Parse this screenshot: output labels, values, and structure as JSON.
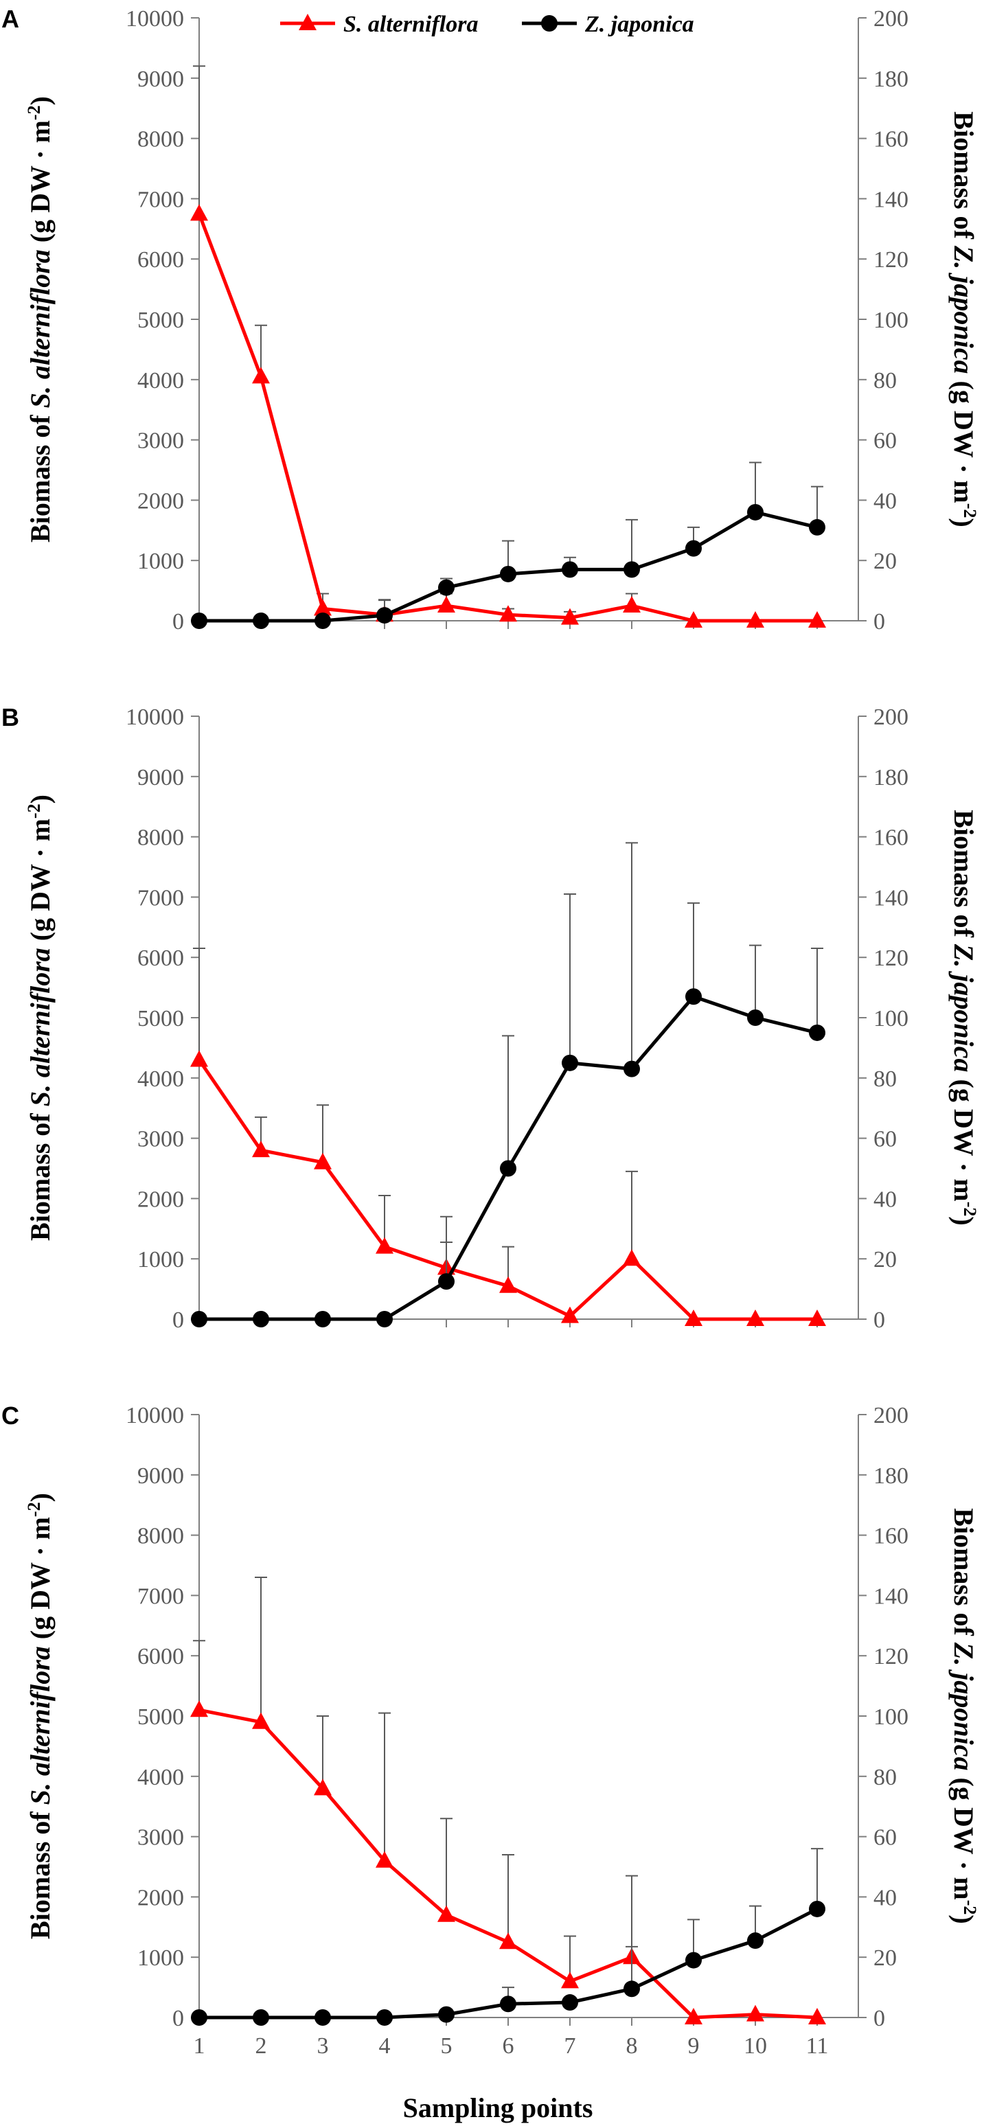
{
  "colors": {
    "s_alterniflora": "#ff0000",
    "z_japonica": "#000000",
    "axis": "#7f7f7f",
    "errorbar": "#595959"
  },
  "legend": [
    {
      "label": "S. alterniflora",
      "marker": "triangle",
      "color": "#ff0000"
    },
    {
      "label": "Z. japonica",
      "marker": "circle",
      "color": "#000000"
    }
  ],
  "left_axis_label": {
    "prefix": "Biomass of ",
    "italic": "S. alterniflora",
    "suffix": " (g DW · m",
    "sup": "-2",
    "close": ")"
  },
  "right_axis_label": {
    "prefix": "Biomass of ",
    "italic": "Z. japonica",
    "suffix": " (g DW · m",
    "sup": "-2",
    "close": ")"
  },
  "x_axis_label": "Sampling points",
  "chart_data": [
    {
      "type": "line",
      "panel": "A",
      "categories": [
        1,
        2,
        3,
        4,
        5,
        6,
        7,
        8,
        9,
        10,
        11
      ],
      "ylim_left": [
        0,
        10000
      ],
      "yticks_left": [
        0,
        1000,
        2000,
        3000,
        4000,
        5000,
        6000,
        7000,
        8000,
        9000,
        10000
      ],
      "ylim_right": [
        0,
        200
      ],
      "yticks_right": [
        0,
        20,
        40,
        60,
        80,
        100,
        120,
        140,
        160,
        180,
        200
      ],
      "series": [
        {
          "name": "S. alterniflora",
          "axis": "left",
          "values": [
            6750,
            4050,
            200,
            100,
            250,
            100,
            50,
            250,
            0,
            0,
            0
          ],
          "errors": [
            2450,
            850,
            250,
            250,
            200,
            100,
            100,
            200,
            0,
            0,
            0
          ]
        },
        {
          "name": "Z. japonica",
          "axis": "right",
          "values": [
            0,
            0,
            0,
            1.8,
            11,
            15.5,
            17,
            17,
            24,
            36,
            31
          ],
          "errors": [
            0,
            0,
            0,
            5,
            3,
            11,
            4,
            16.5,
            7,
            16.5,
            13.5
          ]
        }
      ]
    },
    {
      "type": "line",
      "panel": "B",
      "categories": [
        1,
        2,
        3,
        4,
        5,
        6,
        7,
        8,
        9,
        10,
        11
      ],
      "ylim_left": [
        0,
        10000
      ],
      "yticks_left": [
        0,
        1000,
        2000,
        3000,
        4000,
        5000,
        6000,
        7000,
        8000,
        9000,
        10000
      ],
      "ylim_right": [
        0,
        200
      ],
      "yticks_right": [
        0,
        20,
        40,
        60,
        80,
        100,
        120,
        140,
        160,
        180,
        200
      ],
      "series": [
        {
          "name": "S. alterniflora",
          "axis": "left",
          "values": [
            4300,
            2800,
            2600,
            1200,
            850,
            550,
            50,
            1000,
            0,
            0,
            0
          ],
          "errors": [
            1850,
            550,
            950,
            850,
            850,
            650,
            0,
            1450,
            0,
            0,
            0
          ]
        },
        {
          "name": "Z. japonica",
          "axis": "right",
          "values": [
            0,
            0,
            0,
            0,
            12.5,
            50,
            85,
            83,
            107,
            100,
            95
          ],
          "errors": [
            0,
            0,
            0,
            0,
            13,
            44,
            56,
            75,
            31,
            24,
            28
          ]
        }
      ]
    },
    {
      "type": "line",
      "panel": "C",
      "categories": [
        1,
        2,
        3,
        4,
        5,
        6,
        7,
        8,
        9,
        10,
        11
      ],
      "ylim_left": [
        0,
        10000
      ],
      "yticks_left": [
        0,
        1000,
        2000,
        3000,
        4000,
        5000,
        6000,
        7000,
        8000,
        9000,
        10000
      ],
      "ylim_right": [
        0,
        200
      ],
      "yticks_right": [
        0,
        20,
        40,
        60,
        80,
        100,
        120,
        140,
        160,
        180,
        200
      ],
      "series": [
        {
          "name": "S. alterniflora",
          "axis": "left",
          "values": [
            5100,
            4900,
            3800,
            2600,
            1700,
            1250,
            600,
            1000,
            0,
            50,
            0
          ],
          "errors": [
            1150,
            2400,
            1200,
            2450,
            1600,
            1450,
            750,
            1350,
            0,
            0,
            0
          ]
        },
        {
          "name": "Z. japonica",
          "axis": "right",
          "values": [
            0,
            0,
            0,
            0,
            1,
            4.5,
            5,
            9.5,
            19,
            25.5,
            36
          ],
          "errors": [
            0,
            0,
            0,
            0,
            0,
            5.5,
            0,
            14,
            13.5,
            11.5,
            20
          ]
        }
      ]
    }
  ]
}
